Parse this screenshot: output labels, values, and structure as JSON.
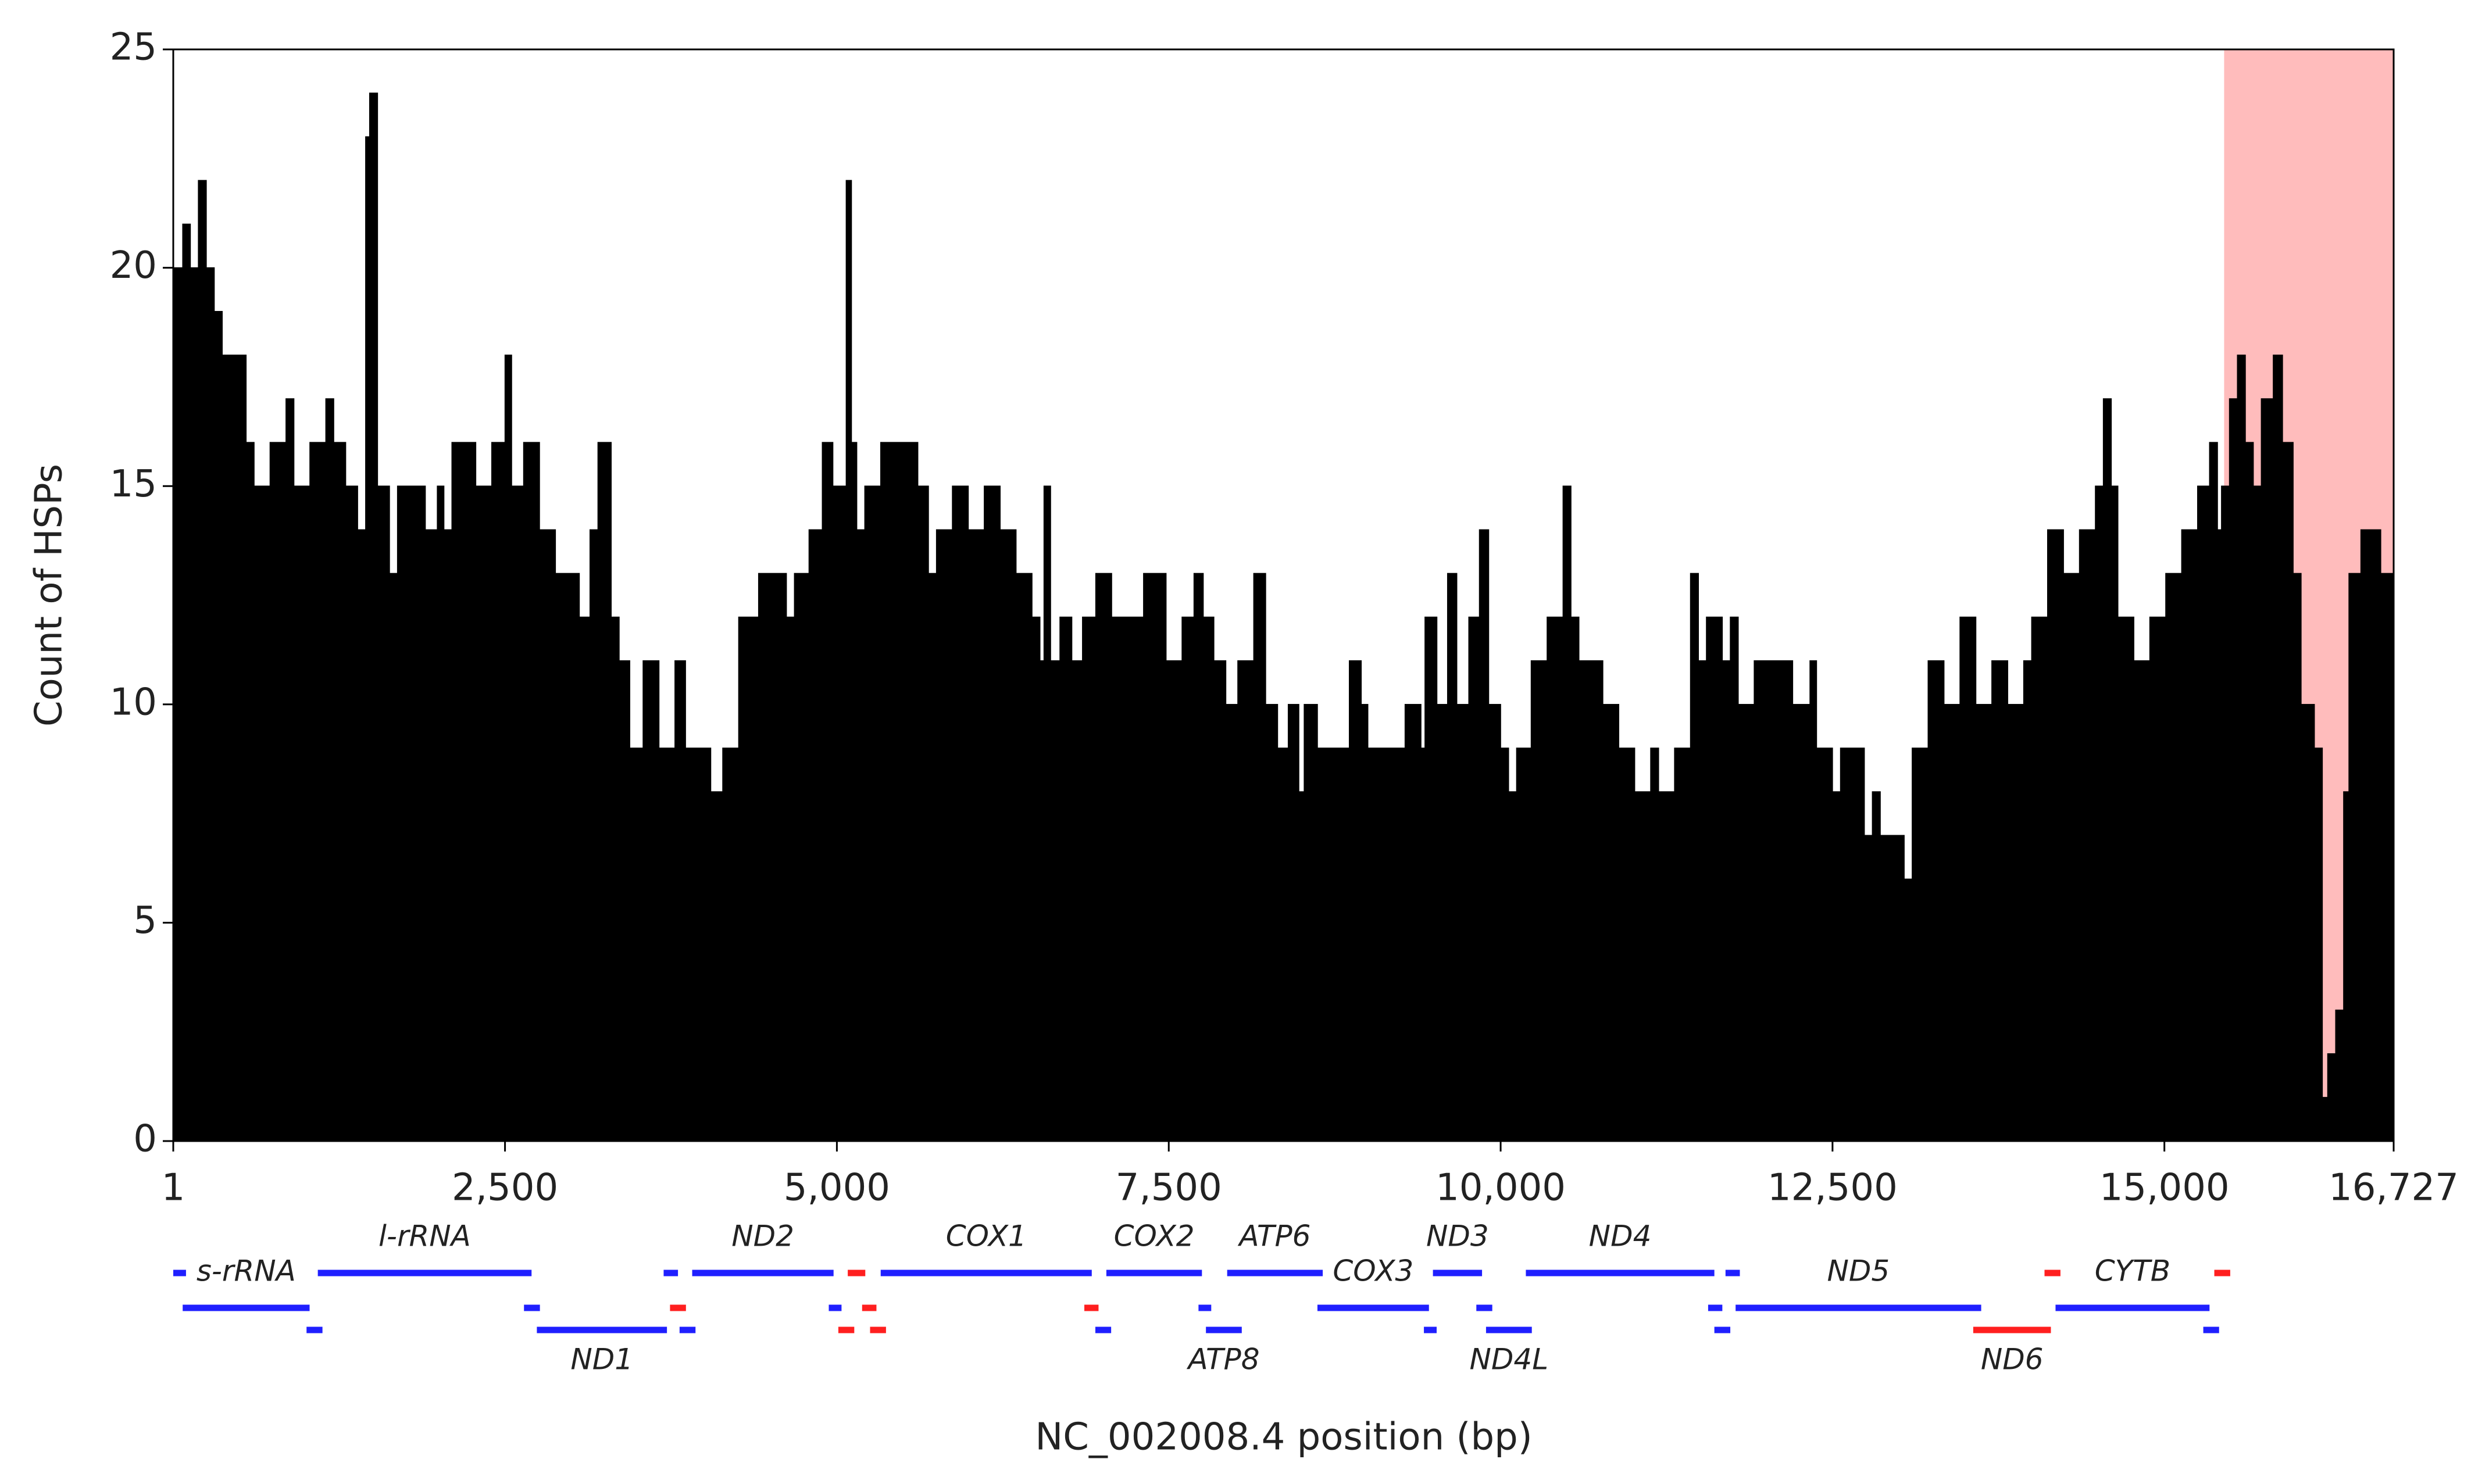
{
  "chart_data": {
    "type": "histogram",
    "ylabel": "Count of HSPs",
    "xlabel": "NC_002008.4 position (bp)",
    "xlim": [
      1,
      16727
    ],
    "ylim": [
      0,
      25
    ],
    "xticks": [
      1,
      {
        "value": 2500,
        "label": "2,500"
      },
      {
        "value": 5000,
        "label": "5,000"
      },
      {
        "value": 7500,
        "label": "7,500"
      },
      {
        "value": 10000,
        "label": "10,000"
      },
      {
        "value": 12500,
        "label": "12,500"
      },
      {
        "value": 15000,
        "label": "15,000"
      },
      {
        "value": 16727,
        "label": "16,727"
      }
    ],
    "yticks": [
      0,
      5,
      10,
      15,
      20,
      25
    ],
    "color": "#000000",
    "highlight": {
      "start": 15450,
      "end": 16727,
      "color": "#ffbcbc"
    },
    "bins": [
      1,
      72,
      130,
      190,
      250,
      310,
      370,
      550,
      610,
      730,
      850,
      910,
      1030,
      1150,
      1210,
      1300,
      1390,
      1450,
      1480,
      1540,
      1630,
      1690,
      1900,
      1990,
      2040,
      2100,
      2280,
      2400,
      2500,
      2550,
      2640,
      2760,
      2880,
      3060,
      3140,
      3200,
      3300,
      3360,
      3440,
      3540,
      3660,
      3780,
      3860,
      4050,
      4140,
      4260,
      4410,
      4620,
      4680,
      4790,
      4890,
      4970,
      5070,
      5110,
      5150,
      5210,
      5330,
      5610,
      5690,
      5750,
      5870,
      5990,
      6110,
      6230,
      6350,
      6470,
      6530,
      6560,
      6610,
      6680,
      6770,
      6850,
      6950,
      7070,
      7310,
      7480,
      7600,
      7690,
      7760,
      7840,
      7930,
      8020,
      8140,
      8230,
      8320,
      8400,
      8480,
      8520,
      8620,
      8860,
      8950,
      9000,
      9280,
      9400,
      9430,
      9520,
      9600,
      9670,
      9760,
      9840,
      9910,
      10000,
      10060,
      10120,
      10230,
      10350,
      10470,
      10530,
      10590,
      10770,
      10890,
      11010,
      11130,
      11190,
      11310,
      11430,
      11490,
      11550,
      11670,
      11730,
      11790,
      11910,
      12200,
      12330,
      12380,
      12500,
      12560,
      12740,
      12800,
      12860,
      13040,
      13100,
      13220,
      13340,
      13460,
      13580,
      13700,
      13820,
      13940,
      14000,
      14120,
      14240,
      14360,
      14480,
      14540,
      14600,
      14650,
      14770,
      14890,
      15010,
      15130,
      15250,
      15340,
      15400,
      15430,
      15490,
      15550,
      15610,
      15670,
      15730,
      15820,
      15890,
      15970,
      16030,
      16130,
      16190,
      16230,
      16290,
      16350,
      16390,
      16480,
      16630,
      16727
    ],
    "counts": [
      20,
      21,
      20,
      22,
      20,
      19,
      18,
      16,
      15,
      16,
      17,
      15,
      16,
      17,
      16,
      15,
      14,
      23,
      24,
      15,
      13,
      15,
      14,
      15,
      14,
      16,
      15,
      16,
      18,
      15,
      16,
      14,
      13,
      12,
      14,
      16,
      12,
      11,
      9,
      11,
      9,
      11,
      9,
      8,
      9,
      12,
      13,
      12,
      13,
      14,
      16,
      15,
      22,
      16,
      14,
      15,
      16,
      15,
      13,
      14,
      15,
      14,
      15,
      14,
      13,
      12,
      11,
      15,
      11,
      12,
      11,
      12,
      13,
      12,
      13,
      11,
      12,
      13,
      12,
      11,
      10,
      11,
      13,
      10,
      9,
      10,
      8,
      10,
      9,
      11,
      10,
      9,
      10,
      9,
      12,
      10,
      13,
      10,
      12,
      14,
      10,
      9,
      8,
      9,
      11,
      12,
      15,
      12,
      11,
      10,
      9,
      8,
      9,
      8,
      9,
      13,
      11,
      12,
      11,
      12,
      10,
      11,
      10,
      11,
      9,
      8,
      9,
      7,
      8,
      7,
      6,
      9,
      11,
      10,
      12,
      10,
      11,
      10,
      11,
      12,
      14,
      13,
      14,
      15,
      17,
      15,
      12,
      11,
      12,
      13,
      14,
      15,
      16,
      14,
      15,
      17,
      18,
      16,
      15,
      17,
      18,
      16,
      13,
      10,
      9,
      1,
      2,
      3,
      8,
      13,
      14,
      13
    ],
    "genes": [
      {
        "name": "s-rRNA",
        "start": 72,
        "end": 1028,
        "track": 2,
        "color": "#1f1fff"
      },
      {
        "name": "l-rRNA",
        "start": 1090,
        "end": 2700,
        "track": 1,
        "color": "#1f1fff"
      },
      {
        "name": "ND1",
        "start": 2740,
        "end": 3720,
        "track": 3,
        "color": "#1f1fff"
      },
      {
        "name": "ND2",
        "start": 3910,
        "end": 4975,
        "track": 1,
        "color": "#1f1fff"
      },
      {
        "name": "COX1",
        "start": 5330,
        "end": 6920,
        "track": 1,
        "color": "#1f1fff"
      },
      {
        "name": "COX2",
        "start": 7030,
        "end": 7750,
        "track": 1,
        "color": "#1f1fff"
      },
      {
        "name": "ATP8",
        "start": 7780,
        "end": 8050,
        "track": 3,
        "color": "#1f1fff"
      },
      {
        "name": "ATP6",
        "start": 7940,
        "end": 8660,
        "track": 1,
        "color": "#1f1fff"
      },
      {
        "name": "COX3",
        "start": 8620,
        "end": 9460,
        "track": 2,
        "color": "#1f1fff"
      },
      {
        "name": "ND3",
        "start": 9490,
        "end": 9860,
        "track": 1,
        "color": "#1f1fff"
      },
      {
        "name": "ND4L",
        "start": 9890,
        "end": 10235,
        "track": 3,
        "color": "#1f1fff"
      },
      {
        "name": "ND4",
        "start": 10190,
        "end": 11610,
        "track": 1,
        "color": "#1f1fff"
      },
      {
        "name": "ND5",
        "start": 11770,
        "end": 13620,
        "track": 2,
        "color": "#1f1fff"
      },
      {
        "name": "ND6",
        "start": 13560,
        "end": 14145,
        "track": 3,
        "color": "#ff1f1f"
      },
      {
        "name": "CYTB",
        "start": 14180,
        "end": 15340,
        "track": 2,
        "color": "#1f1fff"
      }
    ],
    "trna": [
      {
        "start": 1,
        "end": 97,
        "track": 1,
        "color": "#1f1fff"
      },
      {
        "start": 3695,
        "end": 3803,
        "track": 1,
        "color": "#1f1fff"
      },
      {
        "start": 5082,
        "end": 5214,
        "track": 1,
        "color": "#ff1f1f"
      },
      {
        "start": 11694,
        "end": 11802,
        "track": 1,
        "color": "#1f1fff"
      },
      {
        "start": 14097,
        "end": 14217,
        "track": 1,
        "color": "#ff1f1f"
      },
      {
        "start": 15376,
        "end": 15496,
        "track": 1,
        "color": "#ff1f1f"
      },
      {
        "start": 2643,
        "end": 2763,
        "track": 2,
        "color": "#1f1fff"
      },
      {
        "start": 3743,
        "end": 3863,
        "track": 2,
        "color": "#ff1f1f"
      },
      {
        "start": 4939,
        "end": 5035,
        "track": 2,
        "color": "#1f1fff"
      },
      {
        "start": 5190,
        "end": 5298,
        "track": 2,
        "color": "#ff1f1f"
      },
      {
        "start": 6864,
        "end": 6971,
        "track": 2,
        "color": "#ff1f1f"
      },
      {
        "start": 7724,
        "end": 7820,
        "track": 2,
        "color": "#1f1fff"
      },
      {
        "start": 9817,
        "end": 9937,
        "track": 2,
        "color": "#1f1fff"
      },
      {
        "start": 11563,
        "end": 11670,
        "track": 2,
        "color": "#1f1fff"
      },
      {
        "start": 1005,
        "end": 1125,
        "track": 3,
        "color": "#1f1fff"
      },
      {
        "start": 3815,
        "end": 3935,
        "track": 3,
        "color": "#1f1fff"
      },
      {
        "start": 5011,
        "end": 5131,
        "track": 3,
        "color": "#ff1f1f"
      },
      {
        "start": 5250,
        "end": 5370,
        "track": 3,
        "color": "#ff1f1f"
      },
      {
        "start": 6947,
        "end": 7066,
        "track": 3,
        "color": "#1f1fff"
      },
      {
        "start": 9422,
        "end": 9518,
        "track": 3,
        "color": "#1f1fff"
      },
      {
        "start": 11610,
        "end": 11730,
        "track": 3,
        "color": "#1f1fff"
      },
      {
        "start": 15293,
        "end": 15412,
        "track": 3,
        "color": "#1f1fff"
      }
    ]
  }
}
